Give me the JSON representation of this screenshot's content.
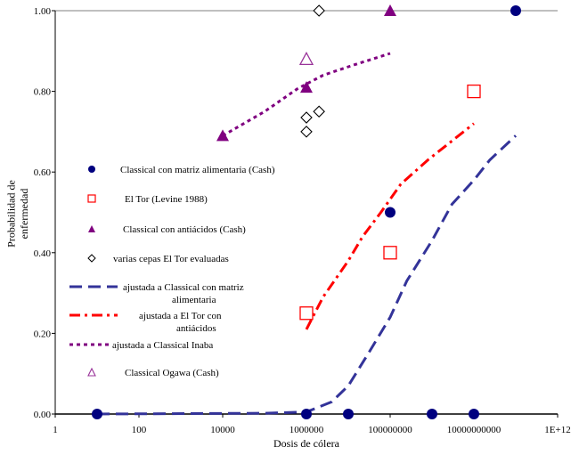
{
  "chart_data": {
    "type": "scatter",
    "xlabel": "Dosis de cólera",
    "ylabel": "Probabilidad de enfermedad",
    "xscale": "log",
    "xlim": [
      1,
      1000000000000.0
    ],
    "ylim": [
      0,
      1
    ],
    "xticks": [
      "1",
      "100",
      "10000",
      "1000000",
      "100000000",
      "10000000000",
      "1E+12"
    ],
    "yticks": [
      "0.00",
      "0.20",
      "0.40",
      "0.60",
      "0.80",
      "1.00"
    ],
    "legend_position": "left-middle",
    "series": [
      {
        "name": "Classical con matriz alimentaria (Cash)",
        "kind": "marker",
        "marker": "filled-circle",
        "color": "#00007f",
        "points": [
          [
            10,
            0
          ],
          [
            1000000.0,
            0
          ],
          [
            10000000.0,
            0
          ],
          [
            100000000.0,
            0.5
          ],
          [
            1000000000.0,
            0
          ],
          [
            10000000000.0,
            0
          ],
          [
            100000000000.0,
            1.0
          ]
        ]
      },
      {
        "name": "El Tor (Levine 1988)",
        "kind": "marker",
        "marker": "open-square",
        "color": "#ff0000",
        "points": [
          [
            1000000.0,
            0.25
          ],
          [
            100000000.0,
            0.4
          ],
          [
            10000000000.0,
            0.8
          ]
        ]
      },
      {
        "name": "Classical con antiácidos (Cash)",
        "kind": "marker",
        "marker": "filled-triangle",
        "color": "#800080",
        "points": [
          [
            10000.0,
            0.69
          ],
          [
            1000000.0,
            0.81
          ],
          [
            100000000.0,
            1.0
          ]
        ]
      },
      {
        "name": "varias cepas El Tor evaluadas",
        "kind": "marker",
        "marker": "open-diamond",
        "color": "#000000",
        "points": [
          [
            1000000.0,
            0.7
          ],
          [
            1000000.0,
            0.735
          ],
          [
            2000000.0,
            0.75
          ],
          [
            2000000.0,
            1.0
          ]
        ]
      },
      {
        "name": "ajustada a Classical con matriz alimentaria",
        "kind": "line",
        "dash": "long-dash",
        "color": "#333399",
        "points": [
          [
            10,
            0
          ],
          [
            100000.0,
            0.002
          ],
          [
            1000000.0,
            0.005
          ],
          [
            4000000.0,
            0.03
          ],
          [
            10000000.0,
            0.07
          ],
          [
            30000000.0,
            0.15
          ],
          [
            100000000.0,
            0.24
          ],
          [
            250000000.0,
            0.33
          ],
          [
            1000000000.0,
            0.43
          ],
          [
            3000000000.0,
            0.52
          ],
          [
            10000000000.0,
            0.58
          ],
          [
            24000000000.0,
            0.63
          ],
          [
            100000000000.0,
            0.69
          ]
        ]
      },
      {
        "name": "ajustada a El Tor con antiácidos",
        "kind": "line",
        "dash": "dash-dot",
        "color": "#ff0000",
        "points": [
          [
            1000000.0,
            0.21
          ],
          [
            2500000.0,
            0.29
          ],
          [
            10000000.0,
            0.38
          ],
          [
            22000000.0,
            0.44
          ],
          [
            60000000.0,
            0.5
          ],
          [
            180000000.0,
            0.57
          ],
          [
            800000000.0,
            0.63
          ],
          [
            10000000000.0,
            0.72
          ]
        ]
      },
      {
        "name": "ajustada a Classical Inaba",
        "kind": "line",
        "dash": "dot",
        "color": "#800080",
        "points": [
          [
            10000.0,
            0.69
          ],
          [
            100000.0,
            0.75
          ],
          [
            600000.0,
            0.806
          ],
          [
            2500000.0,
            0.84
          ],
          [
            13000000.0,
            0.865
          ],
          [
            100000000.0,
            0.894
          ]
        ]
      },
      {
        "name": "Classical Ogawa (Cash)",
        "kind": "marker",
        "marker": "open-triangle",
        "color": "#993399",
        "points": [
          [
            1000000.0,
            0.88
          ]
        ]
      }
    ]
  }
}
